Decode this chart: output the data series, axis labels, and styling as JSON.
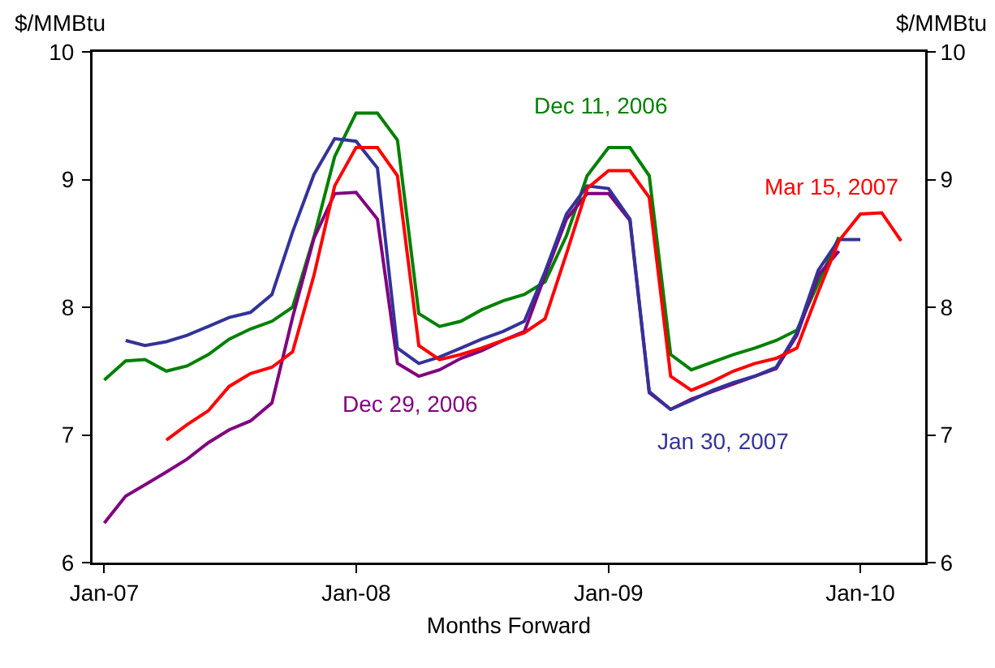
{
  "chart_data": {
    "type": "line",
    "xlabel": "Months Forward",
    "ylabel": "$/MMBtu",
    "y2label": "$/MMBtu",
    "x": [
      "2007-01",
      "2007-02",
      "2007-03",
      "2007-04",
      "2007-05",
      "2007-06",
      "2007-07",
      "2007-08",
      "2007-09",
      "2007-10",
      "2007-11",
      "2007-12",
      "2008-01",
      "2008-02",
      "2008-03",
      "2008-04",
      "2008-05",
      "2008-06",
      "2008-07",
      "2008-08",
      "2008-09",
      "2008-10",
      "2008-11",
      "2008-12",
      "2009-01",
      "2009-02",
      "2009-03",
      "2009-04",
      "2009-05",
      "2009-06",
      "2009-07",
      "2009-08",
      "2009-09",
      "2009-10",
      "2009-11",
      "2009-12",
      "2010-01",
      "2010-02",
      "2010-03"
    ],
    "series": [
      {
        "name": "Dec 11, 2006",
        "color": "#008000",
        "values": [
          7.43,
          7.58,
          7.59,
          7.5,
          7.54,
          7.63,
          7.75,
          7.83,
          7.89,
          8.0,
          8.55,
          9.18,
          9.52,
          9.52,
          9.31,
          7.95,
          7.85,
          7.89,
          7.98,
          8.05,
          8.1,
          8.2,
          8.56,
          9.03,
          9.25,
          9.25,
          9.03,
          7.63,
          7.51,
          7.57,
          7.63,
          7.68,
          7.74,
          7.82,
          8.19,
          8.55,
          null,
          null,
          null
        ]
      },
      {
        "name": "Dec 29, 2006",
        "color": "#800080",
        "values": [
          6.31,
          6.52,
          6.61,
          6.71,
          6.81,
          6.94,
          7.04,
          7.11,
          7.25,
          7.92,
          8.54,
          8.89,
          8.9,
          8.69,
          7.56,
          7.46,
          7.51,
          7.6,
          7.66,
          7.74,
          7.81,
          8.25,
          8.69,
          8.89,
          8.89,
          8.68,
          7.33,
          7.2,
          7.28,
          7.34,
          7.4,
          7.46,
          7.52,
          7.78,
          8.25,
          8.44,
          null,
          null,
          null
        ]
      },
      {
        "name": "Jan 30, 2007",
        "color": "#333399",
        "values": [
          null,
          7.74,
          7.7,
          7.73,
          7.78,
          7.85,
          7.92,
          7.96,
          8.1,
          8.59,
          9.04,
          9.32,
          9.3,
          9.09,
          7.68,
          7.56,
          7.61,
          7.68,
          7.75,
          7.81,
          7.89,
          8.28,
          8.73,
          8.95,
          8.93,
          8.69,
          7.34,
          7.2,
          7.27,
          7.35,
          7.41,
          7.46,
          7.53,
          7.8,
          8.29,
          8.53,
          8.53,
          null,
          null
        ]
      },
      {
        "name": "Mar 15, 2007",
        "color": "#ff0000",
        "values": [
          null,
          null,
          null,
          6.96,
          7.08,
          7.19,
          7.38,
          7.48,
          7.53,
          7.65,
          8.25,
          8.95,
          9.25,
          9.25,
          9.03,
          7.7,
          7.59,
          7.63,
          7.68,
          7.74,
          7.8,
          7.91,
          8.42,
          8.93,
          9.07,
          9.07,
          8.86,
          7.46,
          7.35,
          7.42,
          7.5,
          7.56,
          7.6,
          7.68,
          8.12,
          8.52,
          8.73,
          8.74,
          8.52
        ]
      }
    ],
    "xlim": [
      "2006-12-15",
      "2010-04-05"
    ],
    "xticks": [
      {
        "value": "2007-01-01",
        "label": "Jan-07"
      },
      {
        "value": "2008-01-01",
        "label": "Jan-08"
      },
      {
        "value": "2009-01-01",
        "label": "Jan-09"
      },
      {
        "value": "2010-01-01",
        "label": "Jan-10"
      }
    ],
    "ylim": [
      6,
      10
    ],
    "yticks": [
      6,
      7,
      8,
      9,
      10
    ],
    "y2lim": [
      6,
      10
    ],
    "y2ticks": [
      6,
      7,
      8,
      9,
      10
    ],
    "grid": false,
    "legend": false
  }
}
